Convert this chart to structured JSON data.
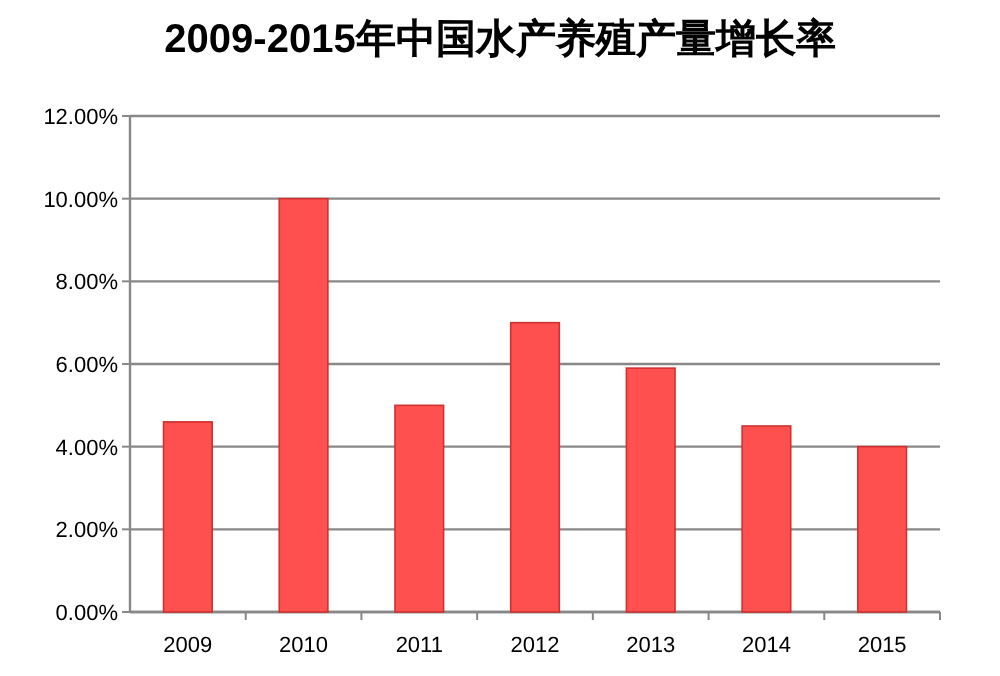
{
  "chart_data": {
    "type": "bar",
    "title": "2009-2015年中国水产养殖产量增长率",
    "categories": [
      "2009",
      "2010",
      "2011",
      "2012",
      "2013",
      "2014",
      "2015"
    ],
    "values": [
      4.6,
      10.0,
      5.0,
      7.0,
      5.9,
      4.5,
      4.0
    ],
    "color": "#ff5050",
    "ylim": [
      0,
      12
    ],
    "yticks": [
      {
        "value": 0,
        "label": "0.00%"
      },
      {
        "value": 2,
        "label": "2.00%"
      },
      {
        "value": 4,
        "label": "4.00%"
      },
      {
        "value": 6,
        "label": "6.00%"
      },
      {
        "value": 8,
        "label": "8.00%"
      },
      {
        "value": 10,
        "label": "10.00%"
      },
      {
        "value": 12,
        "label": "12.00%"
      }
    ],
    "grid": "y"
  }
}
